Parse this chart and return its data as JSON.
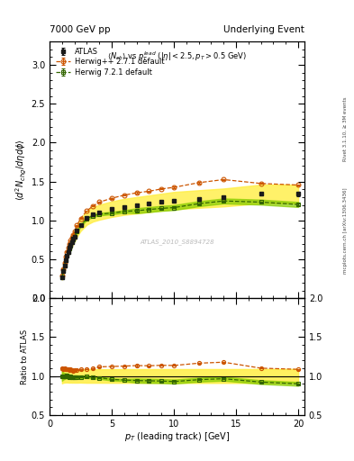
{
  "title_left": "7000 GeV pp",
  "title_right": "Underlying Event",
  "watermark": "ATLAS_2010_S8894728",
  "right_label_top": "Rivet 3.1.10, ≥ 3M events",
  "right_label_bottom": "mcplots.cern.ch [arXiv:1306.3436]",
  "atlas_x": [
    1.0,
    1.1,
    1.2,
    1.3,
    1.4,
    1.5,
    1.6,
    1.7,
    1.8,
    1.9,
    2.0,
    2.2,
    2.5,
    3.0,
    3.5,
    4.0,
    5.0,
    6.0,
    7.0,
    8.0,
    9.0,
    10.0,
    12.0,
    14.0,
    17.0,
    20.0
  ],
  "atlas_y": [
    0.265,
    0.345,
    0.415,
    0.485,
    0.545,
    0.595,
    0.645,
    0.685,
    0.725,
    0.765,
    0.795,
    0.865,
    0.945,
    1.035,
    1.08,
    1.105,
    1.145,
    1.175,
    1.195,
    1.215,
    1.235,
    1.255,
    1.275,
    1.295,
    1.34,
    1.34
  ],
  "atlas_yerr_stat": [
    0.005,
    0.005,
    0.005,
    0.005,
    0.005,
    0.005,
    0.005,
    0.005,
    0.005,
    0.005,
    0.005,
    0.005,
    0.005,
    0.005,
    0.005,
    0.005,
    0.005,
    0.005,
    0.01,
    0.01,
    0.01,
    0.015,
    0.015,
    0.015,
    0.02,
    0.03
  ],
  "atlas_yerr_sys": [
    0.025,
    0.03,
    0.035,
    0.04,
    0.045,
    0.05,
    0.055,
    0.058,
    0.062,
    0.065,
    0.068,
    0.074,
    0.08,
    0.09,
    0.094,
    0.096,
    0.1,
    0.103,
    0.105,
    0.107,
    0.109,
    0.111,
    0.113,
    0.115,
    0.12,
    0.12
  ],
  "herwig_pp_x": [
    1.0,
    1.1,
    1.2,
    1.3,
    1.4,
    1.5,
    1.6,
    1.7,
    1.8,
    1.9,
    2.0,
    2.2,
    2.5,
    3.0,
    3.5,
    4.0,
    5.0,
    6.0,
    7.0,
    8.0,
    9.0,
    10.0,
    12.0,
    14.0,
    17.0,
    20.0
  ],
  "herwig_pp_y": [
    0.29,
    0.375,
    0.455,
    0.53,
    0.595,
    0.648,
    0.698,
    0.742,
    0.782,
    0.818,
    0.855,
    0.935,
    1.025,
    1.125,
    1.185,
    1.235,
    1.285,
    1.325,
    1.355,
    1.375,
    1.405,
    1.425,
    1.485,
    1.525,
    1.475,
    1.455
  ],
  "herwig_pp_yerr": [
    0.004,
    0.004,
    0.004,
    0.004,
    0.004,
    0.004,
    0.004,
    0.004,
    0.004,
    0.004,
    0.004,
    0.004,
    0.004,
    0.004,
    0.004,
    0.004,
    0.004,
    0.004,
    0.008,
    0.008,
    0.008,
    0.008,
    0.008,
    0.008,
    0.008,
    0.008
  ],
  "herwig72_x": [
    1.0,
    1.1,
    1.2,
    1.3,
    1.4,
    1.5,
    1.6,
    1.7,
    1.8,
    1.9,
    2.0,
    2.2,
    2.5,
    3.0,
    3.5,
    4.0,
    5.0,
    6.0,
    7.0,
    8.0,
    9.0,
    10.0,
    12.0,
    14.0,
    17.0,
    20.0
  ],
  "herwig72_y": [
    0.265,
    0.345,
    0.415,
    0.485,
    0.548,
    0.595,
    0.638,
    0.678,
    0.716,
    0.752,
    0.785,
    0.855,
    0.935,
    1.025,
    1.06,
    1.08,
    1.095,
    1.115,
    1.125,
    1.14,
    1.155,
    1.165,
    1.215,
    1.25,
    1.235,
    1.205
  ],
  "herwig72_yerr": [
    0.004,
    0.004,
    0.004,
    0.004,
    0.004,
    0.004,
    0.004,
    0.004,
    0.004,
    0.004,
    0.004,
    0.004,
    0.004,
    0.004,
    0.004,
    0.004,
    0.004,
    0.004,
    0.008,
    0.008,
    0.008,
    0.008,
    0.008,
    0.008,
    0.008,
    0.008
  ],
  "atlas_color": "#1a1a1a",
  "herwig_pp_color": "#cc5500",
  "herwig72_color": "#336600",
  "yellow_band_color": "#ffee44",
  "green_band_color": "#88cc00",
  "ylim_main": [
    0.0,
    3.3
  ],
  "ylim_ratio": [
    0.5,
    2.0
  ],
  "xlim": [
    0.5,
    20.5
  ],
  "main_yticks": [
    0.0,
    0.5,
    1.0,
    1.5,
    2.0,
    2.5,
    3.0
  ],
  "ratio_yticks": [
    0.5,
    1.0,
    1.5,
    2.0
  ]
}
